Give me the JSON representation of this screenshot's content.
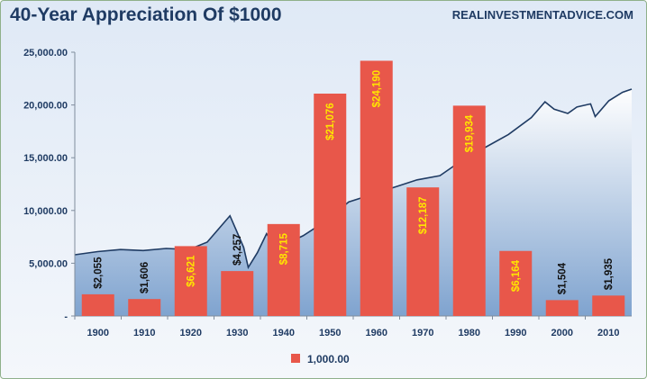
{
  "title": "40-Year Appreciation Of $1000",
  "source": "REALINVESTMENTADVICE.COM",
  "colors": {
    "bar": "#e8574a",
    "bar_label_on_bar": "#ffe600",
    "bar_label_above": "#111111",
    "area_fill_top": "#ffffff",
    "area_fill_bottom": "#7fa3cf",
    "line": "#1f3b63"
  },
  "chart_data": {
    "type": "bar",
    "categories": [
      "1900",
      "1910",
      "1920",
      "1930",
      "1940",
      "1950",
      "1960",
      "1970",
      "1980",
      "1990",
      "2000",
      "2010"
    ],
    "series": [
      {
        "name": "1,000.00",
        "values": [
          2055,
          1606,
          6621,
          4257,
          8715,
          21076,
          24190,
          12187,
          19934,
          6164,
          1504,
          1935
        ],
        "labels": [
          "$2,055",
          "$1,606",
          "$6,621",
          "$4,257",
          "$8,715",
          "$21,076",
          "$24,190",
          "$12,187",
          "$19,934",
          "$6,164",
          "$1,504",
          "$1,935"
        ]
      }
    ],
    "background_area": {
      "type": "area",
      "x": [
        1895,
        1900,
        1905,
        1910,
        1915,
        1920,
        1924,
        1927,
        1929,
        1930,
        1932,
        1933,
        1935,
        1937,
        1939,
        1942,
        1945,
        1950,
        1955,
        1960,
        1962,
        1965,
        1970,
        1975,
        1980,
        1985,
        1990,
        1995,
        1998,
        2000,
        2003,
        2005,
        2008,
        2009,
        2012,
        2015,
        2017
      ],
      "y": [
        5800,
        6100,
        6300,
        6200,
        6400,
        6300,
        7000,
        8500,
        9500,
        8500,
        6500,
        4600,
        6000,
        7800,
        6500,
        7000,
        7600,
        9000,
        10800,
        11500,
        11800,
        12200,
        12900,
        13300,
        14800,
        16000,
        17200,
        18800,
        20300,
        19600,
        19200,
        19800,
        20100,
        18900,
        20400,
        21200,
        21500
      ]
    },
    "y_ticks": [
      "-",
      "5,000.00",
      "10,000.00",
      "15,000.00",
      "20,000.00",
      "25,000.00"
    ],
    "ylim": [
      0,
      25000
    ],
    "legend_position": "bottom",
    "grid": false
  }
}
